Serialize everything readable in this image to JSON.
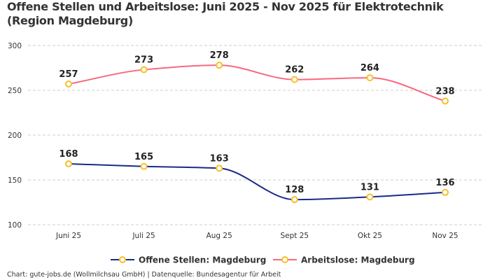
{
  "chart_data": {
    "type": "line",
    "title": "Offene Stellen und Arbeitslose: Juni 2025 - Nov 2025 für Elektrotechnik (Region Magdeburg)",
    "categories": [
      "Juni 25",
      "Juli 25",
      "Aug 25",
      "Sept 25",
      "Okt 25",
      "Nov 25"
    ],
    "ylim": [
      100,
      300
    ],
    "yticks": [
      100,
      150,
      200,
      250,
      300
    ],
    "grid": true,
    "legend_position": "bottom",
    "series": [
      {
        "name": "Offene Stellen: Magdeburg",
        "values": [
          168,
          165,
          163,
          128,
          131,
          136
        ],
        "color": "#1a2a8c"
      },
      {
        "name": "Arbeitslose: Magdeburg",
        "values": [
          257,
          273,
          278,
          262,
          264,
          238
        ],
        "color": "#f7697e"
      }
    ],
    "marker_color": "#f5c02b",
    "credit": "Chart: gute-jobs.de (Wollmilchsau GmbH) | Datenquelle: Bundesagentur für Arbeit"
  }
}
